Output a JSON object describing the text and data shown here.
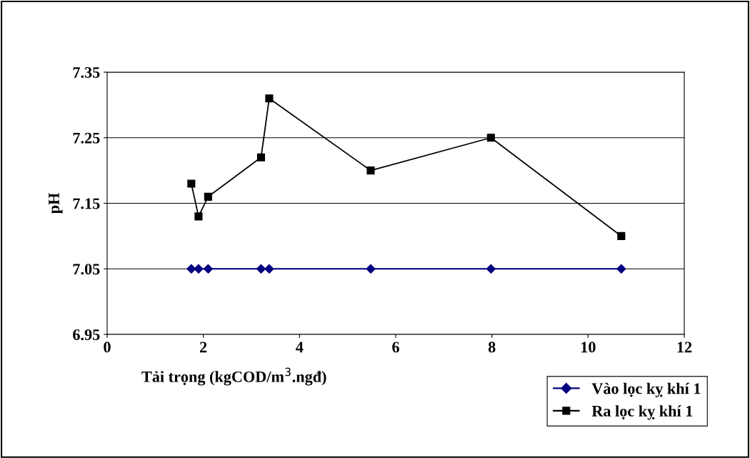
{
  "chart_data": {
    "type": "line",
    "xlabel": "Tải trọng (kgCOD/m$^{3}$.ngđ)",
    "ylabel": "pH",
    "xlim": [
      0,
      12
    ],
    "xticks": [
      0,
      2,
      4,
      6,
      8,
      10,
      12
    ],
    "ylim": [
      6.95,
      7.35
    ],
    "yticks": [
      6.95,
      7.05,
      7.15,
      7.25,
      7.35
    ],
    "grid": "y",
    "legend": "bottom right",
    "series": [
      {
        "name": "Vào lọc kỵ khí 1",
        "color": "#000080",
        "marker": "diamond",
        "x": [
          1.75,
          1.9,
          2.1,
          3.2,
          3.37,
          5.48,
          7.98,
          10.69
        ],
        "values": [
          7.05,
          7.05,
          7.05,
          7.05,
          7.05,
          7.05,
          7.05,
          7.05
        ]
      },
      {
        "name": "Ra lọc kỵ khí 1",
        "color": "#000000",
        "marker": "square",
        "x": [
          1.75,
          1.9,
          2.1,
          3.2,
          3.37,
          5.48,
          7.98,
          10.69
        ],
        "values": [
          7.18,
          7.13,
          7.16,
          7.22,
          7.31,
          7.2,
          7.25,
          7.1
        ]
      }
    ]
  }
}
